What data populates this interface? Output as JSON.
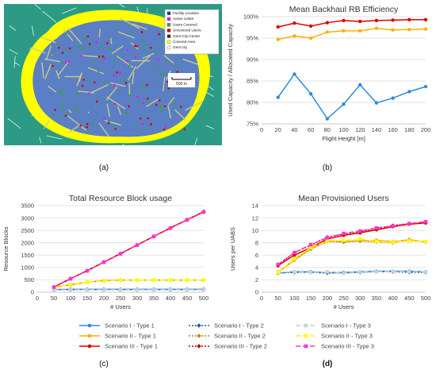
{
  "captions": {
    "a": "(a)",
    "b": "(b)",
    "c": "(c)",
    "d": "(d)"
  },
  "map": {
    "legend": [
      "Facility Location",
      "Active UABS",
      "Users Covered",
      "Uncovered Users",
      "Gent City Center",
      "Covered Area",
      "Gent city"
    ],
    "legend_colors": [
      "#1a3f8c",
      "#ff00ff",
      "#2eaa2e",
      "#cc0000",
      "#333333",
      "#ffff00",
      "#f4f4f4"
    ],
    "scale_label": "500 m",
    "colors": {
      "building": "#5b7fc4",
      "street": "#c9c98a",
      "covered": "#ffff00",
      "outside": "#2d9a86"
    }
  },
  "legend": {
    "items": [
      {
        "label": "Scenario I - Type 1",
        "color": "#2e8bd8",
        "dash": "",
        "marker": "circle"
      },
      {
        "label": "Scenario II - Type 1",
        "color": "#ffb000",
        "dash": "",
        "marker": "circle"
      },
      {
        "label": "Scenario III - Type 1",
        "color": "#e00000",
        "dash": "",
        "marker": "circle"
      },
      {
        "label": "Scenario I - Type 2",
        "color": "#1f5aa8",
        "dash": "2,2",
        "marker": "diamond"
      },
      {
        "label": "Scenario II - Type 2",
        "color": "#c08a00",
        "dash": "2,2",
        "marker": "diamond"
      },
      {
        "label": "Scenario III - Type 2",
        "color": "#c00000",
        "dash": "2,2",
        "marker": "diamond"
      },
      {
        "label": "Scenario I - Type 3",
        "color": "#c8d2dc",
        "dash": "6,3",
        "marker": "square"
      },
      {
        "label": "Scenario II - Type 3",
        "color": "#ffff00",
        "dash": "6,3",
        "marker": "square"
      },
      {
        "label": "Scenario III - Type 3",
        "color": "#ff33cc",
        "dash": "6,3",
        "marker": "square"
      }
    ]
  },
  "chart_data": [
    {
      "id": "b",
      "type": "line",
      "title": "Mean Backhaul RB Efficiency",
      "xlabel": "Flight Height  [m]",
      "ylabel": "Used Capacity / Allocated Capacity",
      "xlim": [
        0,
        200
      ],
      "xticks": [
        0,
        20,
        40,
        60,
        80,
        100,
        120,
        140,
        160,
        180,
        200
      ],
      "ylim": [
        75,
        100
      ],
      "yticks": [
        75,
        80,
        85,
        90,
        95,
        100
      ],
      "ytick_labels": [
        "75%",
        "80%",
        "85%",
        "90%",
        "95%",
        "100%"
      ],
      "grid": true,
      "x": [
        20,
        40,
        60,
        80,
        100,
        120,
        140,
        160,
        180,
        200
      ],
      "series": [
        {
          "color": "#e00000",
          "values": [
            97.6,
            98.5,
            97.8,
            98.6,
            99.1,
            98.9,
            99.1,
            99.2,
            99.3,
            99.3
          ]
        },
        {
          "color": "#ffb000",
          "values": [
            94.7,
            95.5,
            95.0,
            96.4,
            96.7,
            96.7,
            97.3,
            96.9,
            97.0,
            97.1
          ]
        },
        {
          "color": "#2e8bd8",
          "values": [
            81.2,
            86.6,
            82.0,
            76.2,
            79.6,
            84.1,
            79.9,
            81.0,
            82.5,
            83.7
          ]
        }
      ]
    },
    {
      "id": "c",
      "type": "line",
      "title": "Total Resource Block usage",
      "xlabel": "# Users",
      "ylabel": "Resource Blocks",
      "xlim": [
        0,
        500
      ],
      "xticks": [
        0,
        50,
        100,
        150,
        200,
        250,
        300,
        350,
        400,
        450,
        500
      ],
      "ylim": [
        0,
        3500
      ],
      "yticks": [
        0,
        500,
        1000,
        1500,
        2000,
        2500,
        3000,
        3500
      ],
      "grid": true,
      "x": [
        50,
        100,
        150,
        200,
        250,
        300,
        350,
        400,
        450,
        500
      ],
      "series": [
        {
          "style": 0,
          "values": [
            110,
            115,
            115,
            115,
            115,
            115,
            115,
            115,
            115,
            115
          ]
        },
        {
          "style": 1,
          "values": [
            205,
            305,
            405,
            470,
            490,
            490,
            490,
            490,
            490,
            490
          ]
        },
        {
          "style": 2,
          "values": [
            210,
            550,
            870,
            1220,
            1560,
            1910,
            2260,
            2600,
            2930,
            3260
          ]
        },
        {
          "style": 3,
          "values": [
            100,
            105,
            105,
            105,
            105,
            105,
            105,
            105,
            105,
            105
          ]
        },
        {
          "style": 4,
          "values": [
            200,
            300,
            400,
            465,
            490,
            490,
            490,
            490,
            490,
            490
          ]
        },
        {
          "style": 5,
          "values": [
            210,
            545,
            865,
            1215,
            1555,
            1905,
            2255,
            2595,
            2925,
            3250
          ]
        },
        {
          "style": 6,
          "values": [
            90,
            95,
            95,
            95,
            95,
            95,
            95,
            95,
            95,
            95
          ]
        },
        {
          "style": 7,
          "values": [
            200,
            295,
            400,
            460,
            485,
            490,
            490,
            490,
            490,
            490
          ]
        },
        {
          "style": 8,
          "values": [
            200,
            540,
            860,
            1210,
            1550,
            1900,
            2250,
            2590,
            2920,
            3240
          ]
        }
      ]
    },
    {
      "id": "d",
      "type": "line",
      "title": "Mean Provisioned Users",
      "xlabel": "# Users",
      "ylabel": "Users per UABS",
      "xlim": [
        0,
        500
      ],
      "xticks": [
        0,
        50,
        100,
        150,
        200,
        250,
        300,
        350,
        400,
        450,
        500
      ],
      "ylim": [
        0,
        14
      ],
      "yticks": [
        0,
        2,
        4,
        6,
        8,
        10,
        12,
        14
      ],
      "grid": true,
      "x": [
        50,
        100,
        150,
        200,
        250,
        300,
        350,
        400,
        450,
        500
      ],
      "series": [
        {
          "style": 0,
          "values": [
            3.1,
            3.3,
            3.3,
            3.2,
            3.2,
            3.3,
            3.4,
            3.4,
            3.4,
            3.3
          ]
        },
        {
          "style": 1,
          "values": [
            3.2,
            5.2,
            7.0,
            8.3,
            8.2,
            8.3,
            8.4,
            8.2,
            8.4,
            8.2
          ]
        },
        {
          "style": 2,
          "values": [
            4.3,
            6.0,
            7.2,
            8.6,
            9.2,
            9.6,
            10.1,
            10.6,
            11.0,
            11.2
          ]
        },
        {
          "style": 3,
          "values": [
            3.1,
            3.2,
            3.2,
            3.1,
            3.1,
            3.2,
            3.3,
            3.3,
            3.2,
            3.2
          ]
        },
        {
          "style": 4,
          "values": [
            3.3,
            5.3,
            7.0,
            8.2,
            8.1,
            8.3,
            8.1,
            8.0,
            8.5,
            8.1
          ]
        },
        {
          "style": 5,
          "values": [
            4.4,
            6.4,
            7.6,
            8.9,
            9.4,
            9.8,
            10.3,
            10.8,
            11.1,
            11.3
          ]
        },
        {
          "style": 6,
          "values": [
            3.2,
            3.3,
            3.2,
            3.3,
            3.1,
            3.3,
            3.3,
            3.4,
            3.3,
            3.3
          ]
        },
        {
          "style": 7,
          "values": [
            3.2,
            5.4,
            7.2,
            8.3,
            8.4,
            8.6,
            8.2,
            8.1,
            8.3,
            8.2
          ]
        },
        {
          "style": 8,
          "values": [
            4.5,
            6.4,
            7.7,
            8.8,
            9.5,
            9.9,
            10.4,
            10.7,
            11.1,
            11.4
          ]
        }
      ]
    }
  ]
}
